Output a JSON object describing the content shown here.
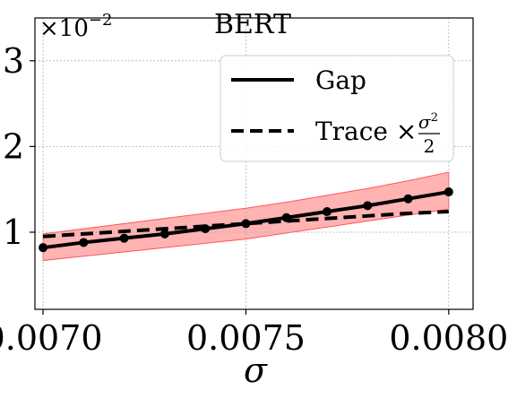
{
  "chart_data": {
    "type": "line",
    "title": "BERT",
    "xlabel": "σ",
    "ylabel": "",
    "y_multiplier": {
      "base": "×10",
      "exponent": "−2"
    },
    "xlim": [
      0.00698,
      0.00806
    ],
    "ylim": [
      0.1,
      3.5
    ],
    "xticks": [
      0.007,
      0.0075,
      0.008
    ],
    "xtick_labels": [
      "0.0070",
      "0.0075",
      "0.0080"
    ],
    "yticks": [
      1,
      2,
      3
    ],
    "ytick_labels": [
      "1",
      "2",
      "3"
    ],
    "grid": true,
    "legend": {
      "placement": "top-right",
      "gap_label": "Gap",
      "trace_label_main": "Trace ×",
      "trace_fraction_num": "σ",
      "trace_fraction_num_sup": "2",
      "trace_fraction_den": "2"
    },
    "x": [
      0.007,
      0.0071,
      0.0072,
      0.0073,
      0.0074,
      0.0075,
      0.0076,
      0.0077,
      0.0078,
      0.0079,
      0.008
    ],
    "series": [
      {
        "name": "Gap",
        "style": "solid",
        "marker": "circle",
        "color": "#000000",
        "values": [
          0.82,
          0.88,
          0.93,
          0.98,
          1.04,
          1.1,
          1.17,
          1.24,
          1.31,
          1.39,
          1.47
        ]
      },
      {
        "name": "Trace × σ²/2",
        "style": "dashed",
        "color": "#000000",
        "values": [
          0.95,
          0.98,
          1.01,
          1.04,
          1.07,
          1.1,
          1.13,
          1.16,
          1.19,
          1.22,
          1.24
        ]
      }
    ],
    "band": {
      "color": "#ff8080",
      "lower": [
        0.67,
        0.72,
        0.77,
        0.82,
        0.87,
        0.92,
        0.99,
        1.06,
        1.13,
        1.2,
        1.27
      ],
      "upper": [
        0.98,
        1.04,
        1.1,
        1.16,
        1.22,
        1.28,
        1.35,
        1.43,
        1.51,
        1.6,
        1.7
      ]
    }
  }
}
